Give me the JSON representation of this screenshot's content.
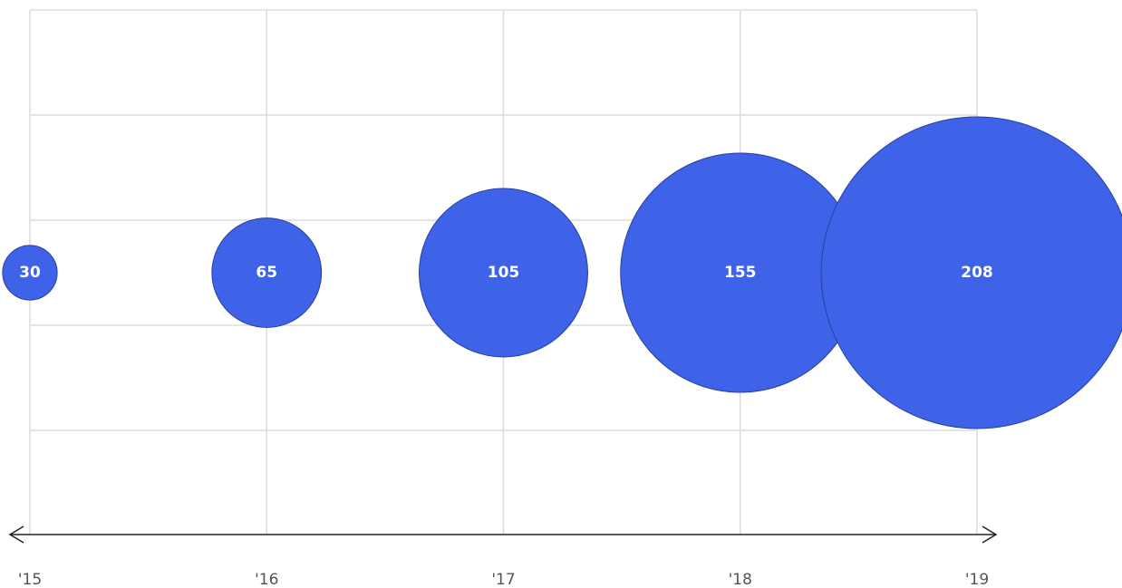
{
  "chart_data": {
    "type": "bubble",
    "title": "",
    "xlabel": "",
    "ylabel": "",
    "categories": [
      "'15",
      "'16",
      "'17",
      "'18",
      "'19"
    ],
    "values": [
      30,
      65,
      105,
      155,
      208
    ],
    "data_labels": [
      "30",
      "65",
      "105",
      "155",
      "208"
    ],
    "grid": true,
    "legend": "none",
    "bubble_color": "#3e63e8",
    "bubble_stroke": "#2a3f9e",
    "grid_color": "#dcdcdc",
    "axis_color": "#222222",
    "label_color": "#ffffff",
    "tick_color": "#555555"
  }
}
